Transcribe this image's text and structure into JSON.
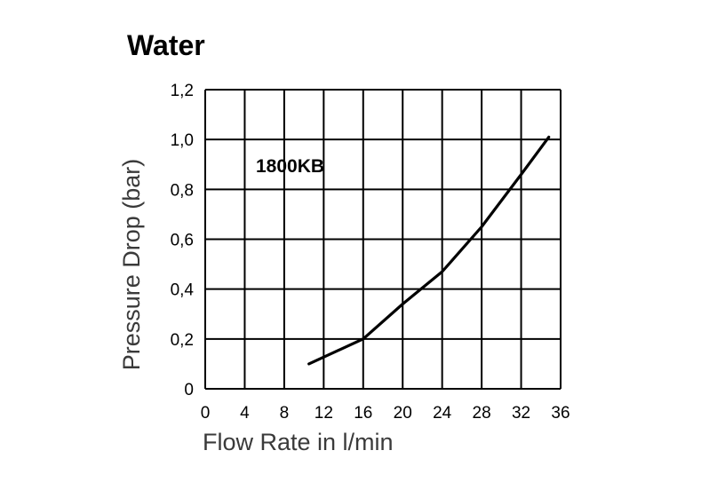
{
  "chart_data": {
    "type": "line",
    "title": "Water",
    "xlabel": "Flow Rate in l/min",
    "ylabel": "Pressure Drop (bar)",
    "xlim": [
      0,
      36
    ],
    "ylim": [
      0,
      1.2
    ],
    "x_ticks": [
      "0",
      "4",
      "8",
      "12",
      "16",
      "20",
      "24",
      "28",
      "32",
      "36"
    ],
    "y_ticks": [
      "0",
      "0,2",
      "0,4",
      "0,6",
      "0,8",
      "1,0",
      "1,2"
    ],
    "grid": true,
    "series": [
      {
        "name": "1800KB",
        "x": [
          10.5,
          16,
          20,
          24,
          28,
          32,
          34.8
        ],
        "y": [
          0.1,
          0.2,
          0.34,
          0.47,
          0.65,
          0.86,
          1.01
        ]
      }
    ],
    "line_color": "#000000"
  }
}
